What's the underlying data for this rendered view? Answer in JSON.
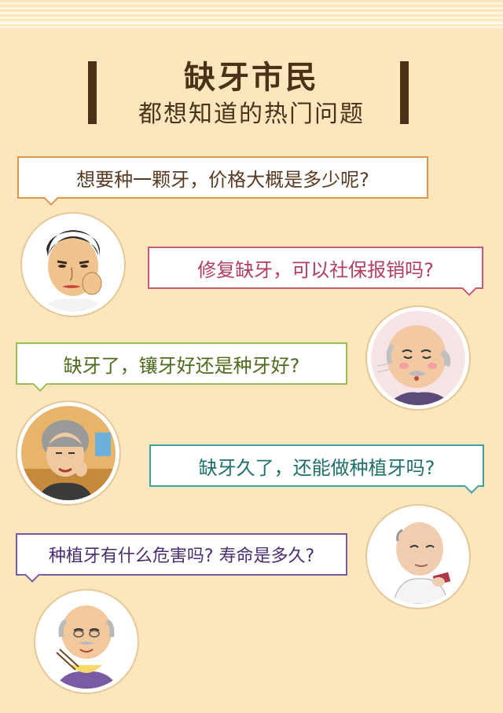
{
  "header": {
    "title": "缺牙市民",
    "subtitle": "都想知道的热门问题"
  },
  "questions": [
    {
      "text": "想要种一颗牙，价格大概是多少呢?",
      "color": "#e2954a"
    },
    {
      "text": "修复缺牙，可以社保报销吗?",
      "color": "#c95a75"
    },
    {
      "text": "缺牙了，镶牙好还是种牙好?",
      "color": "#9cbd51"
    },
    {
      "text": "缺牙久了，还能做种植牙吗?",
      "color": "#3aa3a0"
    },
    {
      "text": "种植牙有什么危害吗? 寿命是多久?",
      "color": "#7a5aa2"
    }
  ],
  "avatars": [
    {
      "icon": "man-toothache-icon"
    },
    {
      "icon": "bald-elder-whistling-icon"
    },
    {
      "icon": "grey-hair-woman-icon"
    },
    {
      "icon": "elder-holding-phone-icon"
    },
    {
      "icon": "elder-eating-noodles-icon"
    }
  ]
}
